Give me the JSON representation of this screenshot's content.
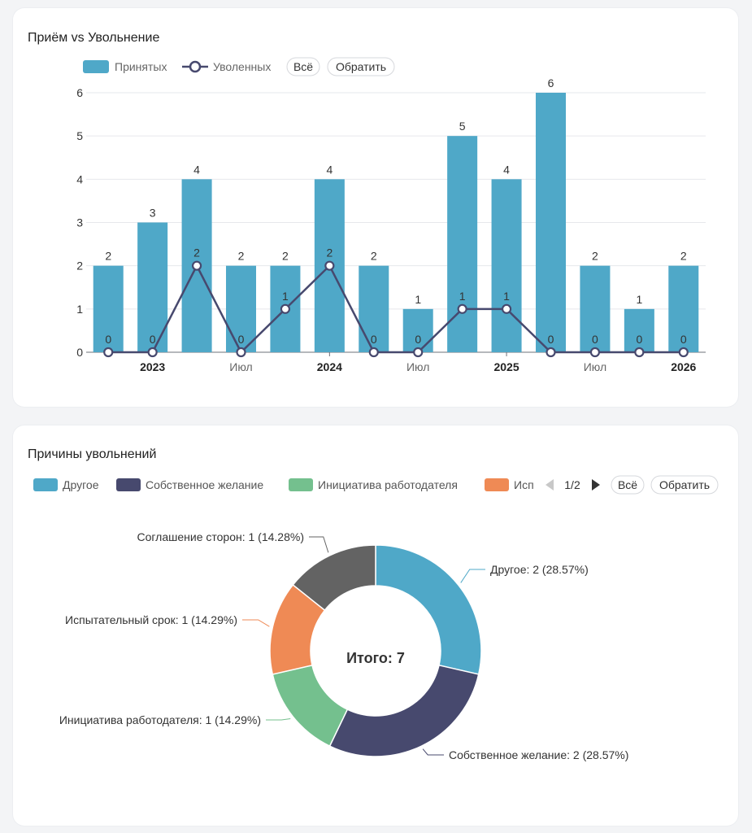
{
  "hire_fire": {
    "title": "Приём vs Увольнение",
    "legend": {
      "hired": "Принятых",
      "fired": "Уволенных",
      "all_btn": "Всё",
      "invert_btn": "Обратить"
    },
    "colors": {
      "bar": "#4fa8c8",
      "line": "#47496e"
    },
    "chart_data": {
      "type": "bar",
      "title": "Приём vs Увольнение",
      "y_ticks": [
        "0",
        "1",
        "2",
        "3",
        "4",
        "5",
        "6"
      ],
      "ylim": [
        0,
        6
      ],
      "x_tick_labels": [
        {
          "index": 1,
          "label": "2023",
          "bold": true
        },
        {
          "index": 3,
          "label": "Июл",
          "bold": false
        },
        {
          "index": 5,
          "label": "2024",
          "bold": true
        },
        {
          "index": 7,
          "label": "Июл",
          "bold": false
        },
        {
          "index": 9,
          "label": "2025",
          "bold": true
        },
        {
          "index": 11,
          "label": "Июл",
          "bold": false
        },
        {
          "index": 13,
          "label": "2026",
          "bold": true
        }
      ],
      "series": [
        {
          "name": "Принятых",
          "type": "bar",
          "values": [
            2,
            3,
            4,
            2,
            2,
            4,
            2,
            1,
            5,
            4,
            6,
            2,
            1,
            2
          ]
        },
        {
          "name": "Уволенных",
          "type": "line",
          "values": [
            0,
            0,
            2,
            0,
            1,
            2,
            0,
            0,
            1,
            1,
            0,
            0,
            0,
            0
          ]
        }
      ],
      "grid": true,
      "legend_position": "top-left"
    }
  },
  "reasons": {
    "title": "Причины увольнений",
    "legend": {
      "items": [
        {
          "label": "Другое",
          "color": "#4fa8c8"
        },
        {
          "label": "Собственное желание",
          "color": "#47496e"
        },
        {
          "label": "Инициатива работодателя",
          "color": "#74c08e"
        },
        {
          "label": "Исп",
          "color": "#ef8a55"
        }
      ],
      "page": "1/2",
      "all_btn": "Всё",
      "invert_btn": "Обратить"
    },
    "center_label": "Итого: 7",
    "chart_data": {
      "type": "pie",
      "variant": "donut",
      "total_label": "Итого: 7",
      "slices": [
        {
          "name": "Другое",
          "value": 2,
          "percent": "28.57%",
          "label": "Другое: 2 (28.57%)",
          "color": "#4fa8c8"
        },
        {
          "name": "Собственное желание",
          "value": 2,
          "percent": "28.57%",
          "label": "Собственное желание: 2 (28.57%)",
          "color": "#47496e"
        },
        {
          "name": "Инициатива работодателя",
          "value": 1,
          "percent": "14.29%",
          "label": "Инициатива работодателя: 1 (14.29%)",
          "color": "#74c08e"
        },
        {
          "name": "Испытательный срок",
          "value": 1,
          "percent": "14.29%",
          "label": "Испытательный срок: 1 (14.29%)",
          "color": "#ef8a55"
        },
        {
          "name": "Соглашение сторон",
          "value": 1,
          "percent": "14.28%",
          "label": "Соглашение сторон: 1 (14.28%)",
          "color": "#636363"
        }
      ]
    }
  }
}
